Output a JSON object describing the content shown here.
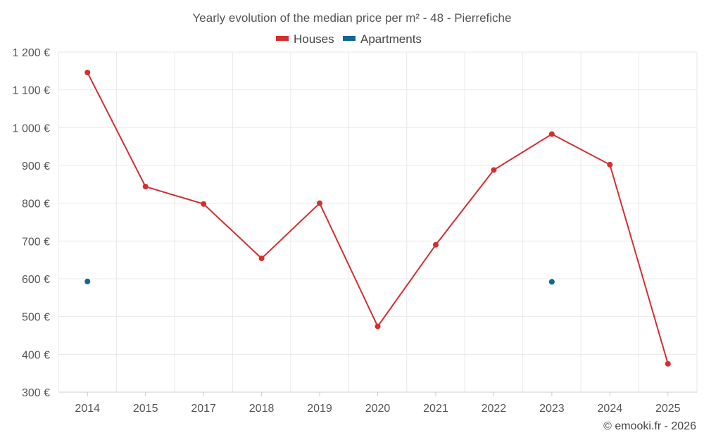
{
  "chart_data": {
    "type": "line",
    "title": "Yearly evolution of the median price per m² - 48 - Pierrefiche",
    "categories": [
      "2014",
      "2015",
      "2017",
      "2018",
      "2019",
      "2020",
      "2021",
      "2022",
      "2023",
      "2024",
      "2025"
    ],
    "series": [
      {
        "name": "Houses",
        "color": "#d32f2f",
        "values": [
          1146,
          844,
          798,
          654,
          800,
          474,
          690,
          888,
          983,
          902,
          375
        ]
      },
      {
        "name": "Apartments",
        "color": "#0e6699",
        "values": [
          593,
          null,
          null,
          null,
          null,
          null,
          null,
          null,
          592,
          null,
          null
        ]
      }
    ],
    "ylim": [
      300,
      1200
    ],
    "yticks": [
      300,
      400,
      500,
      600,
      700,
      800,
      900,
      1000,
      1100,
      1200
    ],
    "ytick_labels": [
      "300 €",
      "400 €",
      "500 €",
      "600 €",
      "700 €",
      "800 €",
      "900 €",
      "1 000 €",
      "1 100 €",
      "1 200 €"
    ],
    "legend_position": "top-center",
    "grid": true
  },
  "credit": "© emooki.fr - 2026"
}
